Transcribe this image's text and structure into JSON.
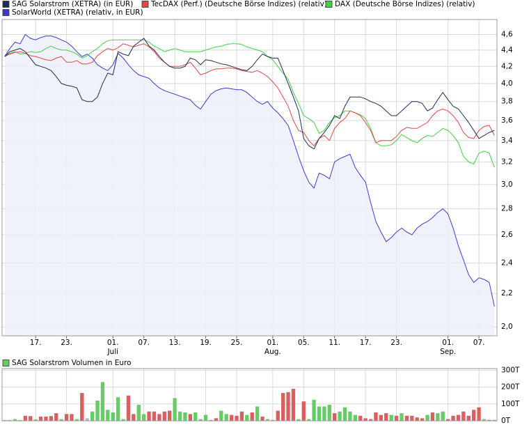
{
  "chart_data": [
    {
      "type": "line",
      "log_scale": true,
      "grid": true,
      "categories": [
        null,
        null,
        null,
        null,
        null,
        null,
        "17.",
        null,
        null,
        null,
        null,
        null,
        "23.",
        null,
        null,
        null,
        null,
        null,
        null,
        null,
        null,
        "01.",
        null,
        null,
        null,
        null,
        null,
        "07.",
        null,
        null,
        null,
        null,
        null,
        "13.",
        null,
        null,
        null,
        null,
        null,
        "19.",
        null,
        null,
        null,
        null,
        null,
        "25.",
        null,
        null,
        null,
        null,
        null,
        null,
        "01.",
        null,
        null,
        null,
        null,
        null,
        "05.",
        null,
        null,
        null,
        null,
        null,
        "11.",
        null,
        null,
        null,
        null,
        null,
        "17.",
        null,
        null,
        null,
        null,
        null,
        "23.",
        null,
        null,
        null,
        null,
        null,
        null,
        null,
        null,
        null,
        "01.",
        null,
        null,
        null,
        null,
        null,
        "07.",
        null,
        null,
        null
      ],
      "month_labels": [
        {
          "index": 21,
          "label": "Juli"
        },
        {
          "index": 52,
          "label": "Aug."
        },
        {
          "index": 86,
          "label": "Sep."
        }
      ],
      "ylim": [
        1.95,
        4.8
      ],
      "yticks": [
        {
          "value": 2.0,
          "label": "2,0"
        },
        {
          "value": 2.2,
          "label": "2,2"
        },
        {
          "value": 2.4,
          "label": "2,4"
        },
        {
          "value": 2.6,
          "label": "2,6"
        },
        {
          "value": 2.8,
          "label": "2,8"
        },
        {
          "value": 3.0,
          "label": "3,0"
        },
        {
          "value": 3.2,
          "label": "3,2"
        },
        {
          "value": 3.4,
          "label": "3,4"
        },
        {
          "value": 3.6,
          "label": "3,6"
        },
        {
          "value": 3.8,
          "label": "3,8"
        },
        {
          "value": 4.0,
          "label": "4,0"
        },
        {
          "value": 4.2,
          "label": "4,2"
        },
        {
          "value": 4.4,
          "label": "4,4"
        },
        {
          "value": 4.6,
          "label": "4,6"
        }
      ],
      "series": [
        {
          "name": "SAG Solarstrom (XETRA) (in EUR)",
          "color": "#1c2a5e",
          "values": [
            4.32,
            4.38,
            4.4,
            4.42,
            4.38,
            4.3,
            4.22,
            4.2,
            4.18,
            4.15,
            4.08,
            4.0,
            3.98,
            3.97,
            3.95,
            3.82,
            3.8,
            3.8,
            3.85,
            4.0,
            4.12,
            4.1,
            4.38,
            4.35,
            4.33,
            4.45,
            4.5,
            4.55,
            4.45,
            4.4,
            4.32,
            4.25,
            4.2,
            4.18,
            4.18,
            4.2,
            4.3,
            4.28,
            4.22,
            4.28,
            4.27,
            4.25,
            4.23,
            4.22,
            4.2,
            4.18,
            4.16,
            4.15,
            4.2,
            4.28,
            4.35,
            4.32,
            4.3,
            4.3,
            4.15,
            4.0,
            3.85,
            3.7,
            3.42,
            3.35,
            3.32,
            3.42,
            3.48,
            3.55,
            3.65,
            3.62,
            3.75,
            3.85,
            3.85,
            3.85,
            3.83,
            3.8,
            3.78,
            3.75,
            3.7,
            3.65,
            3.65,
            3.7,
            3.75,
            3.8,
            3.8,
            3.78,
            3.7,
            3.73,
            3.82,
            3.9,
            3.82,
            3.75,
            3.72,
            3.65,
            3.58,
            3.5,
            3.42,
            3.45,
            3.48,
            3.5
          ]
        },
        {
          "name": "TecDAX (Perf.) (Deutsche Börse Indizes) (relativ)",
          "color": "#e04848",
          "values": [
            4.32,
            4.35,
            4.37,
            4.38,
            4.36,
            4.33,
            4.32,
            4.3,
            4.28,
            4.27,
            4.3,
            4.32,
            4.25,
            4.25,
            4.27,
            4.23,
            4.23,
            4.25,
            4.33,
            4.38,
            4.42,
            4.4,
            4.43,
            4.48,
            4.46,
            4.44,
            4.46,
            4.48,
            4.44,
            4.38,
            4.3,
            4.25,
            4.2,
            4.2,
            4.2,
            4.22,
            4.25,
            4.18,
            4.1,
            4.12,
            4.15,
            4.17,
            4.17,
            4.18,
            4.18,
            4.17,
            4.15,
            4.14,
            4.13,
            4.15,
            4.12,
            4.08,
            4.02,
            3.95,
            3.85,
            3.75,
            3.6,
            3.5,
            3.48,
            3.4,
            3.35,
            3.42,
            3.45,
            3.4,
            3.52,
            3.58,
            3.62,
            3.7,
            3.68,
            3.65,
            3.58,
            3.5,
            3.38,
            3.4,
            3.4,
            3.4,
            3.44,
            3.5,
            3.53,
            3.52,
            3.52,
            3.55,
            3.58,
            3.65,
            3.7,
            3.72,
            3.7,
            3.65,
            3.58,
            3.48,
            3.43,
            3.42,
            3.5,
            3.54,
            3.55,
            3.45
          ]
        },
        {
          "name": "DAX (Deutsche Börse Indizes) (relativ)",
          "color": "#44d044",
          "values": [
            4.32,
            4.36,
            4.38,
            4.35,
            4.36,
            4.38,
            4.37,
            4.38,
            4.42,
            4.45,
            4.42,
            4.4,
            4.4,
            4.38,
            4.35,
            4.3,
            4.33,
            4.38,
            4.42,
            4.48,
            4.52,
            4.53,
            4.53,
            4.53,
            4.53,
            4.53,
            4.53,
            4.53,
            4.5,
            4.45,
            4.42,
            4.38,
            4.4,
            4.42,
            4.4,
            4.38,
            4.38,
            4.38,
            4.38,
            4.4,
            4.42,
            4.44,
            4.45,
            4.47,
            4.48,
            4.48,
            4.47,
            4.44,
            4.42,
            4.4,
            4.38,
            4.32,
            4.28,
            4.2,
            4.12,
            4.05,
            3.9,
            3.78,
            3.65,
            3.62,
            3.58,
            3.47,
            3.5,
            3.58,
            3.63,
            3.65,
            3.7,
            3.7,
            3.68,
            3.66,
            3.62,
            3.52,
            3.38,
            3.35,
            3.35,
            3.36,
            3.4,
            3.46,
            3.43,
            3.4,
            3.38,
            3.42,
            3.45,
            3.44,
            3.48,
            3.52,
            3.5,
            3.45,
            3.38,
            3.25,
            3.2,
            3.18,
            3.28,
            3.3,
            3.28,
            3.15
          ]
        },
        {
          "name": "SolarWorld (XETRA) (relativ, in EUR)",
          "color": "#3c3ccc",
          "fill": "#eceefa",
          "values": [
            4.32,
            4.42,
            4.5,
            4.48,
            4.6,
            4.55,
            4.53,
            4.56,
            4.58,
            4.58,
            4.56,
            4.53,
            4.5,
            4.45,
            4.38,
            4.32,
            4.35,
            4.3,
            4.22,
            4.18,
            4.15,
            4.22,
            4.36,
            4.3,
            4.22,
            4.15,
            4.1,
            4.08,
            4.06,
            4.0,
            3.95,
            3.92,
            3.9,
            3.88,
            3.86,
            3.84,
            3.82,
            3.76,
            3.72,
            3.8,
            3.88,
            3.92,
            3.94,
            3.95,
            3.94,
            3.93,
            3.93,
            3.9,
            3.85,
            3.8,
            3.77,
            3.8,
            3.73,
            3.68,
            3.62,
            3.55,
            3.4,
            3.25,
            3.12,
            3.02,
            2.97,
            3.1,
            3.08,
            3.05,
            3.2,
            3.23,
            3.25,
            3.27,
            3.15,
            3.08,
            3.02,
            2.85,
            2.7,
            2.62,
            2.55,
            2.58,
            2.62,
            2.65,
            2.62,
            2.6,
            2.65,
            2.68,
            2.7,
            2.73,
            2.77,
            2.8,
            2.76,
            2.65,
            2.52,
            2.42,
            2.32,
            2.27,
            2.3,
            2.29,
            2.27,
            2.12
          ]
        }
      ]
    },
    {
      "type": "bar",
      "grid": true,
      "series": [
        {
          "name": "SAG Solarstrom Volumen in Euro",
          "color": "#66cc66",
          "values": [
            5,
            5,
            10,
            5,
            30,
            28,
            8,
            25,
            25,
            28,
            45,
            10,
            40,
            40,
            10,
            165,
            15,
            55,
            120,
            230,
            65,
            50,
            140,
            10,
            150,
            40,
            95,
            40,
            55,
            55,
            40,
            55,
            60,
            135,
            55,
            50,
            40,
            50,
            10,
            35,
            5,
            15,
            60,
            40,
            35,
            30,
            55,
            35,
            50,
            85,
            25,
            10,
            5,
            60,
            165,
            170,
            190,
            10,
            115,
            10,
            125,
            85,
            85,
            95,
            45,
            55,
            80,
            55,
            35,
            30,
            15,
            10,
            50,
            35,
            45,
            35,
            30,
            45,
            30,
            30,
            20,
            15,
            35,
            50,
            45,
            55,
            10,
            30,
            35,
            55,
            30,
            65,
            80,
            10,
            5,
            5
          ],
          "directions": [
            "u",
            "u",
            "u",
            "u",
            "d",
            "d",
            "u",
            "d",
            "d",
            "d",
            "d",
            "u",
            "d",
            "d",
            "u",
            "d",
            "f",
            "u",
            "u",
            "u",
            "u",
            "u",
            "u",
            "u",
            "d",
            "d",
            "u",
            "u",
            "d",
            "d",
            "d",
            "d",
            "d",
            "u",
            "u",
            "u",
            "d",
            "u",
            "u",
            "u",
            "d",
            "d",
            "u",
            "u",
            "d",
            "d",
            "d",
            "u",
            "d",
            "u",
            "d",
            "u",
            "d",
            "d",
            "d",
            "d",
            "d",
            "u",
            "d",
            "u",
            "u",
            "u",
            "u",
            "u",
            "d",
            "u",
            "u",
            "u",
            "u",
            "d",
            "d",
            "d",
            "d",
            "d",
            "d",
            "u",
            "d",
            "u",
            "d",
            "d",
            "d",
            "d",
            "u",
            "d",
            "u",
            "u",
            "d",
            "d",
            "d",
            "d",
            "d",
            "d",
            "d",
            "u",
            "d",
            "d"
          ]
        }
      ],
      "direction_colors": {
        "u": "#66cc66",
        "d": "#d86060",
        "f": "#b8b8b8"
      },
      "ylim": [
        0,
        310
      ],
      "yticks": [
        {
          "value": 0,
          "label": "0T"
        },
        {
          "value": 100,
          "label": "100T"
        },
        {
          "value": 200,
          "label": "200T"
        },
        {
          "value": 300,
          "label": "300T"
        }
      ]
    }
  ]
}
